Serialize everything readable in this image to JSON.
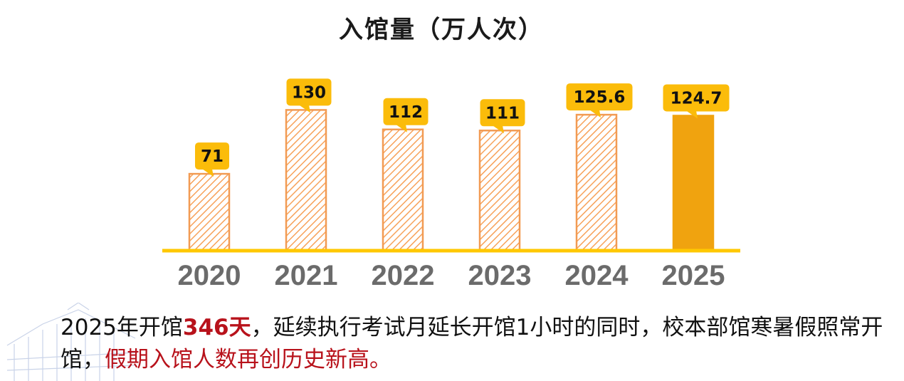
{
  "chart_data": {
    "type": "bar",
    "title": "入馆量（万人次）",
    "categories": [
      "2020",
      "2021",
      "2022",
      "2023",
      "2024",
      "2025"
    ],
    "values": [
      71,
      130,
      112,
      111,
      125.6,
      124.7
    ],
    "value_labels": [
      "71",
      "130",
      "112",
      "111",
      "125.6",
      "124.7"
    ],
    "ylim": [
      0,
      150
    ],
    "grid": false,
    "legend": "none",
    "highlight_index": 5
  },
  "colors": {
    "bar_hatch": "#f7a25a",
    "bar_outline": "#f29b53",
    "bar_solid": "#f0a30f",
    "callout": "#fbbc0a",
    "axis_line": "#ffc800",
    "tick_label": "#6b6b6b",
    "highlight_text": "#b8121b"
  },
  "caption": {
    "part1": "2025年开馆",
    "part2": "346天",
    "part3": "，延续执行考试月延长开馆1小时的同时，校本部馆寒暑假照常开馆，",
    "part4": "假期入馆人数再创历史新高。"
  }
}
